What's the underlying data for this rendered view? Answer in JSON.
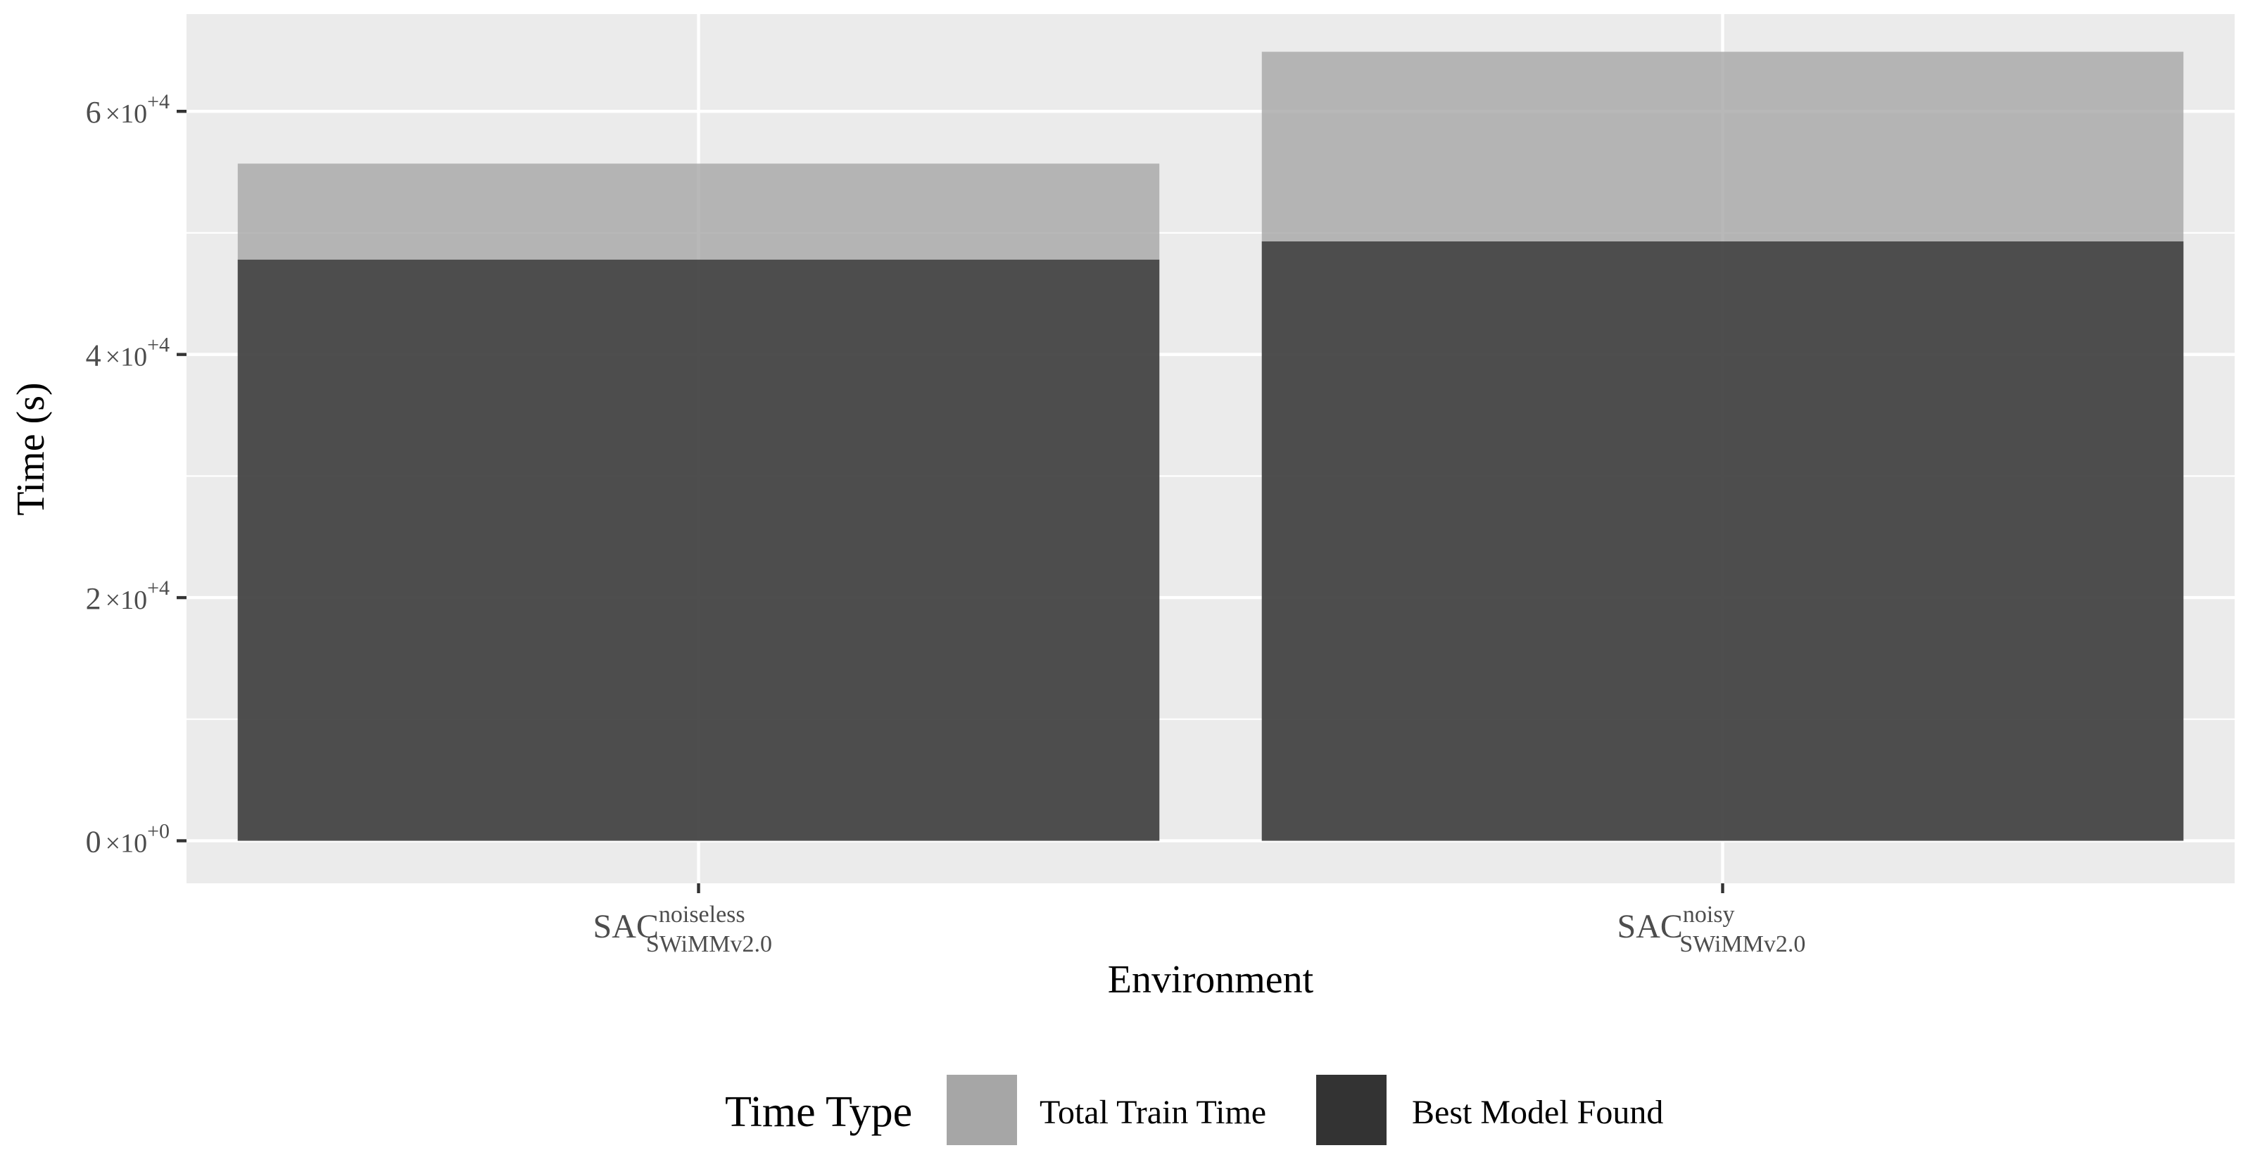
{
  "chart_data": {
    "type": "bar",
    "title": "",
    "xlabel": "Environment",
    "ylabel": "Time (s)",
    "ylim": [
      -3500,
      68000
    ],
    "grid": true,
    "categories": [
      {
        "base": "SAC",
        "sup": "noiseless",
        "sub": "SWiMMv2.0"
      },
      {
        "base": "SAC",
        "sup": "noisy",
        "sub": "SWiMMv2.0"
      }
    ],
    "yticks": [
      {
        "value": 0,
        "mantissa": "0",
        "times": "×",
        "base": "10",
        "exp": "+0"
      },
      {
        "value": 20000,
        "mantissa": "2",
        "times": "×",
        "base": "10",
        "exp": "+4"
      },
      {
        "value": 40000,
        "mantissa": "4",
        "times": "×",
        "base": "10",
        "exp": "+4"
      },
      {
        "value": 60000,
        "mantissa": "6",
        "times": "×",
        "base": "10",
        "exp": "+4"
      }
    ],
    "series": [
      {
        "name": "Total Train Time",
        "color": "#a6a6a6",
        "alpha": 0.8,
        "values": [
          55700,
          64900
        ]
      },
      {
        "name": "Best Model Found",
        "color": "#333333",
        "alpha": 0.8,
        "values": [
          47800,
          49300
        ]
      }
    ],
    "legend": {
      "title": "Time Type",
      "position": "bottom",
      "entries": [
        {
          "label": "Total Train Time",
          "color": "#a6a6a6"
        },
        {
          "label": "Best Model Found",
          "color": "#333333"
        }
      ]
    },
    "colors": {
      "panel": "#ebebeb",
      "grid": "#ffffff",
      "tick": "#333333"
    }
  }
}
